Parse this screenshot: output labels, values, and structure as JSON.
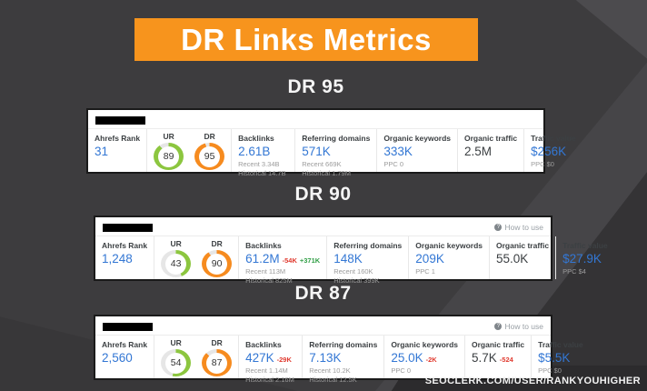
{
  "banner": {
    "title": "DR Links Metrics",
    "bg": "#f7941d"
  },
  "watermark": "SEOCLERK.COM/USER/RANKYOUHIGHER",
  "colors": {
    "banner_orange": "#f7941d",
    "value_blue": "#3377d4",
    "delta_red": "#e0392e",
    "delta_green": "#2f9e44",
    "donut_green": "#8cc63f",
    "donut_orange": "#f68b1f",
    "background_dark": "#3d3c3e"
  },
  "sections": [
    {
      "heading": "DR 95",
      "how_to_use": "",
      "ahrefs_rank": {
        "label": "Ahrefs Rank",
        "value": "31"
      },
      "ur": {
        "label": "UR",
        "value": 89,
        "color": "#8cc63f"
      },
      "dr": {
        "label": "DR",
        "value": 95,
        "color": "#f68b1f"
      },
      "backlinks": {
        "label": "Backlinks",
        "value": "2.61B",
        "delta_neg": "",
        "delta_pos": "",
        "recent": "Recent 3.34B",
        "historical": "Historical 14.7B"
      },
      "referring_domains": {
        "label": "Referring domains",
        "value": "571K",
        "recent": "Recent 669K",
        "historical": "Historical 1.79M"
      },
      "organic_keywords": {
        "label": "Organic keywords",
        "value": "333K",
        "delta_neg": "",
        "ppc": "PPC 0"
      },
      "organic_traffic": {
        "label": "Organic traffic",
        "value": "2.5M",
        "delta_neg": ""
      },
      "traffic_value": {
        "label": "Traffic value",
        "value": "$256K",
        "ppc": "PPC $0"
      }
    },
    {
      "heading": "DR 90",
      "how_to_use": "How to use",
      "ahrefs_rank": {
        "label": "Ahrefs Rank",
        "value": "1,248"
      },
      "ur": {
        "label": "UR",
        "value": 43,
        "color": "#8cc63f"
      },
      "dr": {
        "label": "DR",
        "value": 90,
        "color": "#f68b1f"
      },
      "backlinks": {
        "label": "Backlinks",
        "value": "61.2M",
        "delta_neg": "-54K",
        "delta_pos": "+371K",
        "recent": "Recent 113M",
        "historical": "Historical 825M"
      },
      "referring_domains": {
        "label": "Referring domains",
        "value": "148K",
        "recent": "Recent 160K",
        "historical": "Historical 399K"
      },
      "organic_keywords": {
        "label": "Organic keywords",
        "value": "209K",
        "delta_neg": "",
        "ppc": "PPC 1"
      },
      "organic_traffic": {
        "label": "Organic traffic",
        "value": "55.0K",
        "delta_neg": ""
      },
      "traffic_value": {
        "label": "Traffic value",
        "value": "$27.9K",
        "ppc": "PPC $4"
      }
    },
    {
      "heading": "DR 87",
      "how_to_use": "How to use",
      "ahrefs_rank": {
        "label": "Ahrefs Rank",
        "value": "2,560"
      },
      "ur": {
        "label": "UR",
        "value": 54,
        "color": "#8cc63f"
      },
      "dr": {
        "label": "DR",
        "value": 87,
        "color": "#f68b1f"
      },
      "backlinks": {
        "label": "Backlinks",
        "value": "427K",
        "delta_neg": "-29K",
        "delta_pos": "",
        "recent": "Recent 1.14M",
        "historical": "Historical 2.16M"
      },
      "referring_domains": {
        "label": "Referring domains",
        "value": "7.13K",
        "recent": "Recent 10.2K",
        "historical": "Historical 12.5K"
      },
      "organic_keywords": {
        "label": "Organic keywords",
        "value": "25.0K",
        "delta_neg": "-2K",
        "ppc": "PPC 0"
      },
      "organic_traffic": {
        "label": "Organic traffic",
        "value": "5.7K",
        "delta_neg": "-524"
      },
      "traffic_value": {
        "label": "Traffic value",
        "value": "$5.5K",
        "ppc": "PPC $0"
      }
    }
  ]
}
